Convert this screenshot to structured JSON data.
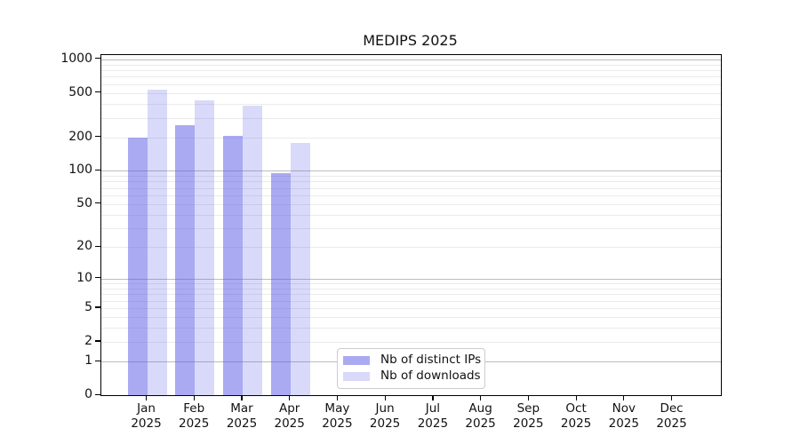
{
  "title": "MEDIPS 2025",
  "chart_data": {
    "type": "bar",
    "title": "MEDIPS 2025",
    "xlabel": "",
    "ylabel": "",
    "y_scale": "log10(1+value)",
    "ylim": [
      0,
      1090
    ],
    "categories": [
      "Jan",
      "Feb",
      "Mar",
      "Apr",
      "May",
      "Jun",
      "Jul",
      "Aug",
      "Sep",
      "Oct",
      "Nov",
      "Dec"
    ],
    "year": "2025",
    "series": [
      {
        "name": "Nb of distinct IPs",
        "color": "rgba(85,85,230,0.5)",
        "values": [
          198,
          259,
          206,
          95,
          null,
          null,
          null,
          null,
          null,
          null,
          null,
          null
        ]
      },
      {
        "name": "Nb of downloads",
        "color": "rgba(85,85,230,0.225)",
        "values": [
          535,
          426,
          385,
          177,
          null,
          null,
          null,
          null,
          null,
          null,
          null,
          null
        ]
      }
    ],
    "y_ticks": [
      1000,
      500,
      200,
      100,
      50,
      20,
      10,
      5,
      2,
      1,
      0
    ],
    "y_major_gridlines": [
      1,
      10,
      100,
      1000
    ],
    "y_minor_gridlines": [
      2,
      3,
      4,
      5,
      6,
      7,
      8,
      9,
      20,
      30,
      40,
      50,
      60,
      70,
      80,
      90,
      200,
      300,
      400,
      500,
      600,
      700,
      800,
      900
    ],
    "grid": "on",
    "legend_position": "lower center"
  },
  "colors": {
    "bar_base": "#5555e6",
    "grid_minor": "#ebebeb",
    "grid_major": "#bdbdbd",
    "spine": "#000000",
    "background": "#ffffff"
  }
}
